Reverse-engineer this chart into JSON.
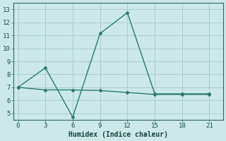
{
  "x": [
    0,
    3,
    6,
    9,
    12,
    15,
    18,
    21
  ],
  "line1_y": [
    7.0,
    8.5,
    4.7,
    11.15,
    12.75,
    6.5,
    6.5,
    6.5
  ],
  "line2_y": [
    7.0,
    6.8,
    6.8,
    6.75,
    6.6,
    6.45,
    6.45,
    6.45
  ],
  "line_color": "#2d7a6a",
  "bg_color": "#cce8e8",
  "grid_color": "#aacece",
  "xlabel": "Humidex (Indice chaleur)",
  "xlim": [
    -0.5,
    22.5
  ],
  "ylim": [
    4.5,
    13.5
  ],
  "yticks": [
    5,
    6,
    7,
    8,
    9,
    10,
    11,
    12,
    13
  ],
  "xticks": [
    0,
    3,
    6,
    9,
    12,
    15,
    18,
    21
  ],
  "marker": "D",
  "markersize": 2.5,
  "linewidth": 1.0,
  "tick_fontsize": 6.5,
  "xlabel_fontsize": 7.0
}
